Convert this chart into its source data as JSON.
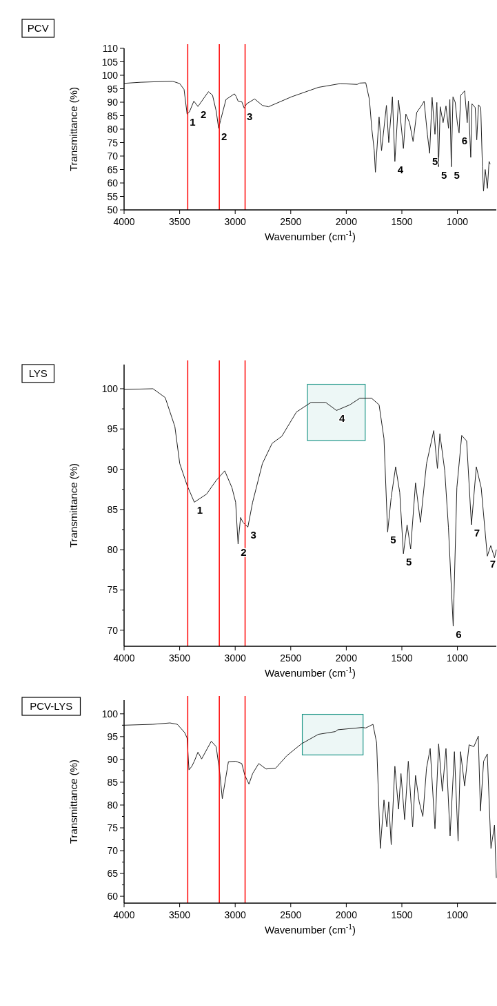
{
  "chart_data": [
    {
      "type": "line",
      "title": "PCV",
      "xlabel": "Wavenumber (cm$^{-1}$)",
      "ylabel": "Transmittance (%)",
      "xlim": [
        4000,
        650
      ],
      "xticks": [
        4000,
        3500,
        3000,
        2500,
        2000,
        1500,
        1000
      ],
      "ylim": [
        50,
        110
      ],
      "yticks": [
        50,
        55,
        60,
        65,
        70,
        75,
        80,
        85,
        90,
        95,
        100,
        105,
        110
      ],
      "grid": false,
      "series": [
        {
          "color": "#222222",
          "x": [
            4000,
            3849,
            3565,
            3499,
            3460,
            3433,
            3412,
            3372,
            3335,
            3241,
            3204,
            3171,
            3149,
            3132,
            3083,
            3007,
            2992,
            2974,
            2941,
            2919,
            2897,
            2825,
            2755,
            2701,
            2493,
            2252,
            2055,
            1902,
            1880,
            1825,
            1792,
            1771,
            1749,
            1738,
            1705,
            1683,
            1639,
            1618,
            1585,
            1563,
            1530,
            1519,
            1486,
            1464,
            1431,
            1399,
            1366,
            1322,
            1300,
            1270,
            1250,
            1228,
            1202,
            1185,
            1170,
            1155,
            1129,
            1103,
            1080,
            1068,
            1055,
            1040,
            1020,
            1000,
            985,
            970,
            935,
            912,
            901,
            880,
            869,
            840,
            826,
            810,
            790,
            775,
            765,
            750,
            730,
            715,
            705
          ],
          "values": [
            97.0,
            97.4,
            97.8,
            96.9,
            94.7,
            85.6,
            86.4,
            90.4,
            88.4,
            93.9,
            92.6,
            86.7,
            80.3,
            83.2,
            91.0,
            93.1,
            92.2,
            90.4,
            90.2,
            87.8,
            89.4,
            91.2,
            88.8,
            88.3,
            92.0,
            95.5,
            96.9,
            96.6,
            97.1,
            97.2,
            91.0,
            80.3,
            72.2,
            64,
            84.5,
            72,
            88.8,
            75,
            92,
            68,
            90.7,
            86.7,
            72.8,
            85.6,
            82.4,
            75.4,
            86.2,
            88.8,
            90.4,
            78,
            71,
            91.8,
            78.1,
            89.9,
            66,
            88.3,
            82.4,
            88.6,
            80.3,
            91,
            66,
            92,
            90,
            82,
            78.6,
            92.6,
            94.2,
            82.4,
            90.4,
            69.5,
            89.4,
            88,
            76,
            89,
            88,
            66,
            57,
            65,
            58,
            68,
            67
          ]
        }
      ],
      "ref_lines": [
        {
          "axis": "x",
          "value": 3427,
          "color": "#ff0000"
        },
        {
          "axis": "x",
          "value": 3143,
          "color": "#ff0000"
        },
        {
          "axis": "x",
          "value": 2911,
          "color": "#ff0000"
        }
      ],
      "annotations": [
        {
          "text": "1",
          "x": 3433,
          "y": 85.6
        },
        {
          "text": "2",
          "x": 3335,
          "y": 88.4
        },
        {
          "text": "2",
          "x": 3149,
          "y": 80.3
        },
        {
          "text": "3",
          "x": 2919,
          "y": 87.8
        },
        {
          "text": "4",
          "x": 1563,
          "y": 68
        },
        {
          "text": "5",
          "x": 1250,
          "y": 71
        },
        {
          "text": "5",
          "x": 1170,
          "y": 66
        },
        {
          "text": "5",
          "x": 1055,
          "y": 66
        },
        {
          "text": "6",
          "x": 985,
          "y": 78.6
        }
      ]
    },
    {
      "type": "line",
      "title": "LYS",
      "xlabel": "Wavenumber (cm$^{-1}$)",
      "ylabel": "Transmittance (%)",
      "xlim": [
        4000,
        650
      ],
      "xticks": [
        4000,
        3500,
        3000,
        2500,
        2000,
        1500,
        1000
      ],
      "ylim": [
        68,
        103
      ],
      "yticks": [
        70,
        {
          "value": 72.5,
          "label": null
        },
        75,
        {
          "value": 77.5,
          "label": null
        },
        80,
        {
          "value": 82.5,
          "label": null
        },
        85,
        {
          "value": 87.5,
          "label": null
        },
        90,
        {
          "value": 92.5,
          "label": null
        },
        95,
        {
          "value": 97.5,
          "label": null
        },
        100
      ],
      "grid": false,
      "series": [
        {
          "color": "#222222",
          "x": [
            4000,
            3740,
            3630,
            3543,
            3499,
            3433,
            3368,
            3258,
            3171,
            3094,
            3029,
            2996,
            2974,
            2952,
            2930,
            2886,
            2843,
            2755,
            2668,
            2580,
            2449,
            2318,
            2186,
            2088,
            1968,
            1880,
            1771,
            1705,
            1661,
            1628,
            1596,
            1556,
            1519,
            1486,
            1453,
            1421,
            1377,
            1333,
            1278,
            1213,
            1180,
            1158,
            1114,
            1081,
            1038,
            1005,
            961,
            917,
            874,
            830,
            786,
            731,
            700,
            666,
            650
          ],
          "values": [
            99.9,
            100,
            98.9,
            95.3,
            90.7,
            88.0,
            85.9,
            86.9,
            88.6,
            89.8,
            87.7,
            85.9,
            80.7,
            84.0,
            83.4,
            82.8,
            85.9,
            90.7,
            93.2,
            94.1,
            97.1,
            98.3,
            98.3,
            97.3,
            98.0,
            98.8,
            98.8,
            98.0,
            93.8,
            82.2,
            86.5,
            90.3,
            87.1,
            79.5,
            83.1,
            80.1,
            88.3,
            83.4,
            90.7,
            94.8,
            90.1,
            94.4,
            89.8,
            82.8,
            70.5,
            87.7,
            94.2,
            93.5,
            83.1,
            90.3,
            87.7,
            79.2,
            80.5,
            79,
            80
          ]
        }
      ],
      "ref_lines": [
        {
          "axis": "x",
          "value": 3427,
          "color": "#ff0000"
        },
        {
          "axis": "x",
          "value": 3143,
          "color": "#ff0000"
        },
        {
          "axis": "x",
          "value": 2911,
          "color": "#ff0000"
        }
      ],
      "bands": [
        {
          "axis": "x",
          "from": 2350,
          "to": 1830,
          "color": "#1f9688"
        }
      ],
      "annotations": [
        {
          "text": "1",
          "x": 3368,
          "y": 85.9
        },
        {
          "text": "2",
          "x": 2974,
          "y": 80.7
        },
        {
          "text": "3",
          "x": 2886,
          "y": 82.8
        },
        {
          "text": "4",
          "x": 2088,
          "y": 97.3
        },
        {
          "text": "5",
          "x": 1628,
          "y": 82.2
        },
        {
          "text": "5",
          "x": 1486,
          "y": 79.5
        },
        {
          "text": "6",
          "x": 1038,
          "y": 70.5
        },
        {
          "text": "7",
          "x": 874,
          "y": 83.1
        },
        {
          "text": "7",
          "x": 731,
          "y": 79.2
        }
      ]
    },
    {
      "type": "line",
      "title": "PCV-LYS",
      "xlabel": "Wavenumber (cm$^{-1}$)",
      "ylabel": "Transmittance (%)",
      "xlim": [
        4000,
        650
      ],
      "xticks": [
        4000,
        3500,
        3000,
        2500,
        2000,
        1500,
        1000
      ],
      "ylim": [
        58.5,
        103
      ],
      "yticks": [
        60,
        {
          "value": 62.5,
          "label": null
        },
        65,
        {
          "value": 67.5,
          "label": null
        },
        70,
        {
          "value": 72.5,
          "label": null
        },
        75,
        {
          "value": 77.5,
          "label": null
        },
        80,
        {
          "value": 82.5,
          "label": null
        },
        85,
        {
          "value": 87.5,
          "label": null
        },
        90,
        {
          "value": 92.5,
          "label": null
        },
        95,
        {
          "value": 97.5,
          "label": null
        },
        100
      ],
      "grid": false,
      "series": [
        {
          "color": "#222222",
          "x": [
            4000,
            3740,
            3587,
            3521,
            3455,
            3433,
            3416,
            3390,
            3368,
            3335,
            3302,
            3215,
            3171,
            3138,
            3116,
            3061,
            2996,
            2941,
            2913,
            2876,
            2843,
            2788,
            2722,
            2635,
            2536,
            2405,
            2252,
            2099,
            2077,
            1858,
            1825,
            1760,
            1727,
            1694,
            1661,
            1635,
            1618,
            1596,
            1563,
            1530,
            1508,
            1475,
            1442,
            1403,
            1377,
            1344,
            1311,
            1278,
            1245,
            1202,
            1169,
            1136,
            1103,
            1066,
            1027,
            994,
            972,
            935,
            895,
            852,
            812,
            793,
            764,
            731,
            698,
            666,
            650
          ],
          "values": [
            97.5,
            97.7,
            98.0,
            97.7,
            95.9,
            94.7,
            87.7,
            88.5,
            89.6,
            91.6,
            90.1,
            94.0,
            92.8,
            86.9,
            81.4,
            89.5,
            89.6,
            89.1,
            86.5,
            84.6,
            86.9,
            89.1,
            87.9,
            88.1,
            90.8,
            93.4,
            95.5,
            96.1,
            96.5,
            97.0,
            96.9,
            97.7,
            93.6,
            70.5,
            81.1,
            75.2,
            80.7,
            71.3,
            88.5,
            79.1,
            86.9,
            76.8,
            89.6,
            75.2,
            86.5,
            80.7,
            77.5,
            88.1,
            92.4,
            74.8,
            93.4,
            83.0,
            92.4,
            73.2,
            91.7,
            72.1,
            91.7,
            84.2,
            93.2,
            92.8,
            95.1,
            78.7,
            89.6,
            91.2,
            70.5,
            75.6,
            64
          ]
        }
      ],
      "ref_lines": [
        {
          "axis": "x",
          "value": 3427,
          "color": "#ff0000"
        },
        {
          "axis": "x",
          "value": 3143,
          "color": "#ff0000"
        },
        {
          "axis": "x",
          "value": 2911,
          "color": "#ff0000"
        }
      ],
      "bands": [
        {
          "axis": "x",
          "from": 2396,
          "to": 1849,
          "color": "#1f9688"
        }
      ]
    }
  ]
}
